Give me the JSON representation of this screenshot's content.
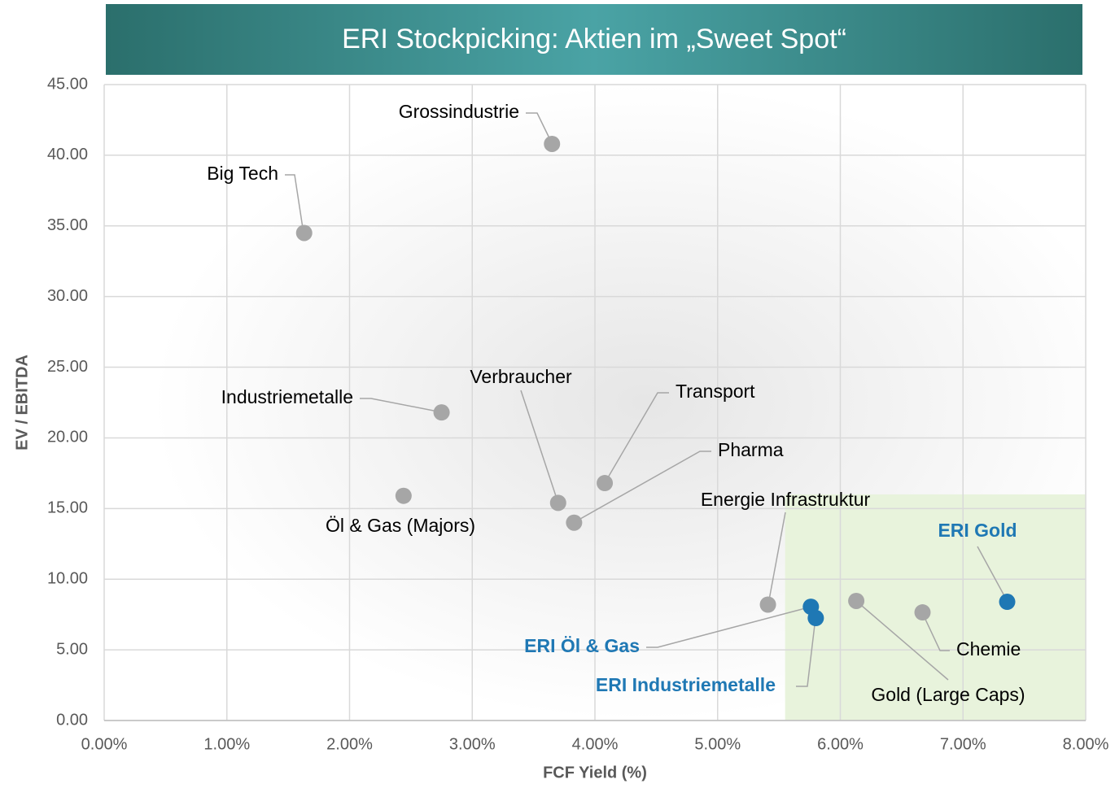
{
  "chart_data": {
    "type": "scatter",
    "title": "ERI Stockpicking:  Aktien im „Sweet Spot“",
    "x_label": "FCF Yield (%)",
    "y_label": "EV / EBITDA",
    "labels": [
      "Grossindustrie",
      "Big Tech",
      "Industriemetalle",
      "Öl & Gas (Majors)",
      "Verbraucher",
      "Transport",
      "Pharma",
      "Energie Infrastruktur",
      "ERI Öl & Gas",
      "ERI Industriemetalle",
      "Gold (Large Caps)",
      "Chemie",
      "ERI Gold"
    ],
    "x": [
      3.65,
      1.63,
      2.75,
      2.44,
      3.7,
      4.08,
      3.83,
      5.41,
      5.76,
      5.8,
      6.13,
      6.67,
      7.36
    ],
    "values": [
      40.8,
      34.5,
      21.8,
      15.9,
      15.4,
      16.8,
      14.0,
      8.2,
      8.05,
      7.25,
      8.46,
      7.65,
      8.4
    ],
    "highlight": [
      false,
      false,
      false,
      false,
      false,
      false,
      false,
      false,
      true,
      true,
      false,
      false,
      true
    ],
    "point_color": "#a6a6a6",
    "highlight_color": "#1f78b4",
    "sweet_spot": {
      "x": [
        5.55,
        8
      ],
      "y": [
        0,
        16
      ],
      "color": "#e8f3dc"
    },
    "xlim": [
      0,
      8
    ],
    "ylim": [
      0,
      45
    ],
    "xticks": [
      {
        "value": 0,
        "label": "0.00%"
      },
      {
        "value": 1,
        "label": "1.00%"
      },
      {
        "value": 2,
        "label": "2.00%"
      },
      {
        "value": 3,
        "label": "3.00%"
      },
      {
        "value": 4,
        "label": "4.00%"
      },
      {
        "value": 5,
        "label": "5.00%"
      },
      {
        "value": 6,
        "label": "6.00%"
      },
      {
        "value": 7,
        "label": "7.00%"
      },
      {
        "value": 8,
        "label": "8.00%"
      }
    ],
    "yticks": [
      {
        "value": 0,
        "label": "0.00"
      },
      {
        "value": 5,
        "label": "5.00"
      },
      {
        "value": 10,
        "label": "10.00"
      },
      {
        "value": 15,
        "label": "15.00"
      },
      {
        "value": 20,
        "label": "20.00"
      },
      {
        "value": 25,
        "label": "25.00"
      },
      {
        "value": 30,
        "label": "30.00"
      },
      {
        "value": 35,
        "label": "35.00"
      },
      {
        "value": 40,
        "label": "40.00"
      },
      {
        "value": 45,
        "label": "45.00"
      }
    ],
    "grid": true
  }
}
